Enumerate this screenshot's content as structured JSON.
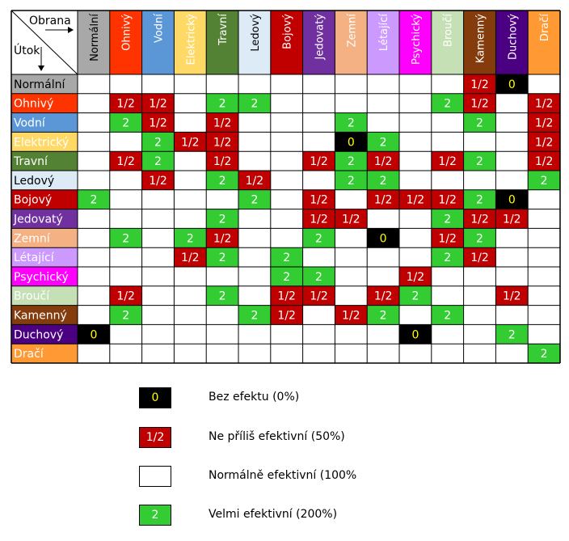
{
  "chart_data": {
    "type": "heatmap",
    "corner": {
      "top_label": "Obrana",
      "bottom_label": "Útok"
    },
    "types": [
      {
        "name": "Normální",
        "color": "#A8A8A8"
      },
      {
        "name": "Ohnivý",
        "color": "#FF3300"
      },
      {
        "name": "Vodní",
        "color": "#5B97D6"
      },
      {
        "name": "Elektrický",
        "color": "#FFD966"
      },
      {
        "name": "Travní",
        "color": "#548235"
      },
      {
        "name": "Ledový",
        "color": "#DDEBF7"
      },
      {
        "name": "Bojový",
        "color": "#C00000"
      },
      {
        "name": "Jedovatý",
        "color": "#7030A0"
      },
      {
        "name": "Zemní",
        "color": "#F4B183"
      },
      {
        "name": "Létající",
        "color": "#CC99FF"
      },
      {
        "name": "Psychický",
        "color": "#FF00FF"
      },
      {
        "name": "Broučí",
        "color": "#C5E0B4"
      },
      {
        "name": "Kamenný",
        "color": "#843C0C"
      },
      {
        "name": "Duchový",
        "color": "#4B0082"
      },
      {
        "name": "Dračí",
        "color": "#FF9933"
      }
    ],
    "cells": [
      [
        "",
        "",
        "",
        "",
        "",
        "",
        "",
        "",
        "",
        "",
        "",
        "",
        "1/2",
        "0",
        ""
      ],
      [
        "",
        "1/2",
        "1/2",
        "",
        "2",
        "2",
        "",
        "",
        "",
        "",
        "",
        "2",
        "1/2",
        "",
        "1/2"
      ],
      [
        "",
        "2",
        "1/2",
        "",
        "1/2",
        "",
        "",
        "",
        "2",
        "",
        "",
        "",
        "2",
        "",
        "1/2"
      ],
      [
        "",
        "",
        "2",
        "1/2",
        "1/2",
        "",
        "",
        "",
        "0",
        "2",
        "",
        "",
        "",
        "",
        "1/2"
      ],
      [
        "",
        "1/2",
        "2",
        "",
        "1/2",
        "",
        "",
        "1/2",
        "2",
        "1/2",
        "",
        "1/2",
        "2",
        "",
        "1/2"
      ],
      [
        "",
        "",
        "1/2",
        "",
        "2",
        "1/2",
        "",
        "",
        "2",
        "2",
        "",
        "",
        "",
        "",
        "2"
      ],
      [
        "2",
        "",
        "",
        "",
        "",
        "2",
        "",
        "1/2",
        "",
        "1/2",
        "1/2",
        "1/2",
        "2",
        "0",
        ""
      ],
      [
        "",
        "",
        "",
        "",
        "2",
        "",
        "",
        "1/2",
        "1/2",
        "",
        "",
        "2",
        "1/2",
        "1/2",
        ""
      ],
      [
        "",
        "2",
        "",
        "2",
        "1/2",
        "",
        "",
        "2",
        "",
        "0",
        "",
        "1/2",
        "2",
        "",
        ""
      ],
      [
        "",
        "",
        "",
        "1/2",
        "2",
        "",
        "2",
        "",
        "",
        "",
        "",
        "2",
        "1/2",
        "",
        ""
      ],
      [
        "",
        "",
        "",
        "",
        "",
        "",
        "2",
        "2",
        "",
        "",
        "1/2",
        "",
        "",
        "",
        ""
      ],
      [
        "",
        "1/2",
        "",
        "",
        "2",
        "",
        "1/2",
        "1/2",
        "",
        "1/2",
        "2",
        "",
        "",
        "1/2",
        ""
      ],
      [
        "",
        "2",
        "",
        "",
        "",
        "2",
        "1/2",
        "",
        "1/2",
        "2",
        "",
        "2",
        "",
        "",
        ""
      ],
      [
        "0",
        "",
        "",
        "",
        "",
        "",
        "",
        "",
        "",
        "",
        "0",
        "",
        "",
        "2",
        ""
      ],
      [
        "",
        "",
        "",
        "",
        "",
        "",
        "",
        "",
        "",
        "",
        "",
        "",
        "",
        "",
        "2"
      ]
    ],
    "legend": [
      {
        "value": "0",
        "label": "Bez efektu (0%)",
        "fill": "#000000",
        "text_color": "#FFFF00"
      },
      {
        "value": "1/2",
        "label": "Ne příliš efektivní (50%)",
        "fill": "#C00000",
        "text_color": "#FFFFFF"
      },
      {
        "value": "",
        "label": "Normálně efektivní (100%",
        "fill": "#FFFFFF",
        "text_color": "#000000"
      },
      {
        "value": "2",
        "label": "Velmi efektivní (200%)",
        "fill": "#33CC33",
        "text_color": "#FFFFFF"
      }
    ]
  }
}
